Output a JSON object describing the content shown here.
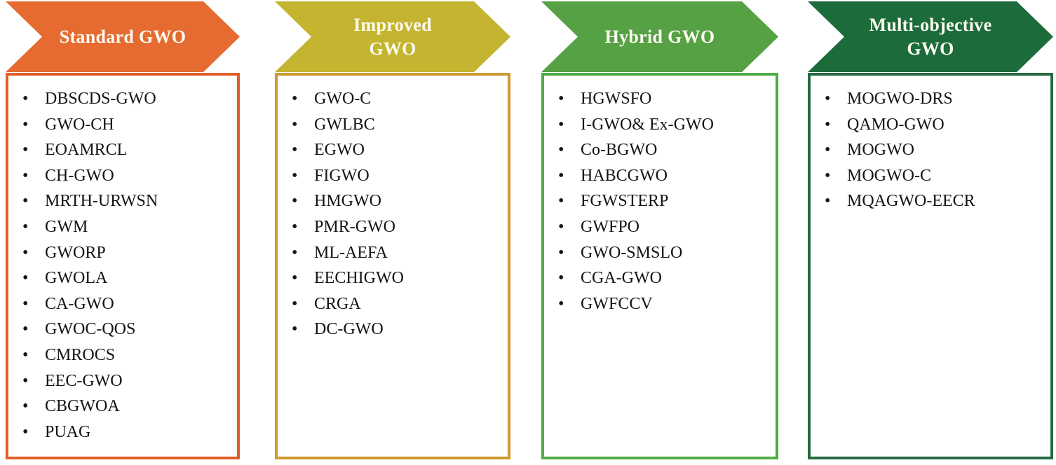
{
  "figure": {
    "background": "#FFFFFF",
    "title_color": "#FCFAF0",
    "text_color": "#141414",
    "columns": [
      {
        "id": "standard-gwo",
        "title": "Standard GWO",
        "chevron_color": "#E56B31",
        "border_color": "#E05F28",
        "items": [
          "DBSCDS-GWO",
          "GWO-CH",
          "EOAMRCL",
          "CH-GWO",
          "MRTH-URWSN",
          "GWM",
          "GWORP",
          "GWOLA",
          "CA-GWO",
          "GWOC-QOS",
          "CMROCS",
          "EEC-GWO",
          "CBGWOA",
          "PUAG"
        ]
      },
      {
        "id": "improved-gwo",
        "title": "Improved\nGWO",
        "chevron_color": "#C4B42F",
        "border_color": "#CF9A31",
        "items": [
          "GWO-C",
          "GWLBC",
          "EGWO",
          "FIGWO",
          "HMGWO",
          "PMR-GWO",
          "ML-AEFA",
          "EECHIGWO",
          "CRGA",
          "DC-GWO"
        ]
      },
      {
        "id": "hybrid-gwo",
        "title": "Hybrid GWO",
        "chevron_color": "#55A143",
        "border_color": "#4FAC46",
        "items": [
          "HGWSFO",
          "I-GWO& Ex-GWO",
          "Co-BGWO",
          "HABCGWO",
          "FGWSTERP",
          "GWFPO",
          "GWO-SMSLO",
          "CGA-GWO",
          "GWFCCV"
        ]
      },
      {
        "id": "multi-objective-gwo",
        "title": "Multi-objective\nGWO",
        "chevron_color": "#1C6B3A",
        "border_color": "#266B42",
        "items": [
          "MOGWO-DRS",
          "QAMO-GWO",
          "MOGWO",
          "MOGWO-C",
          "MQAGWO-EECR"
        ]
      }
    ]
  }
}
